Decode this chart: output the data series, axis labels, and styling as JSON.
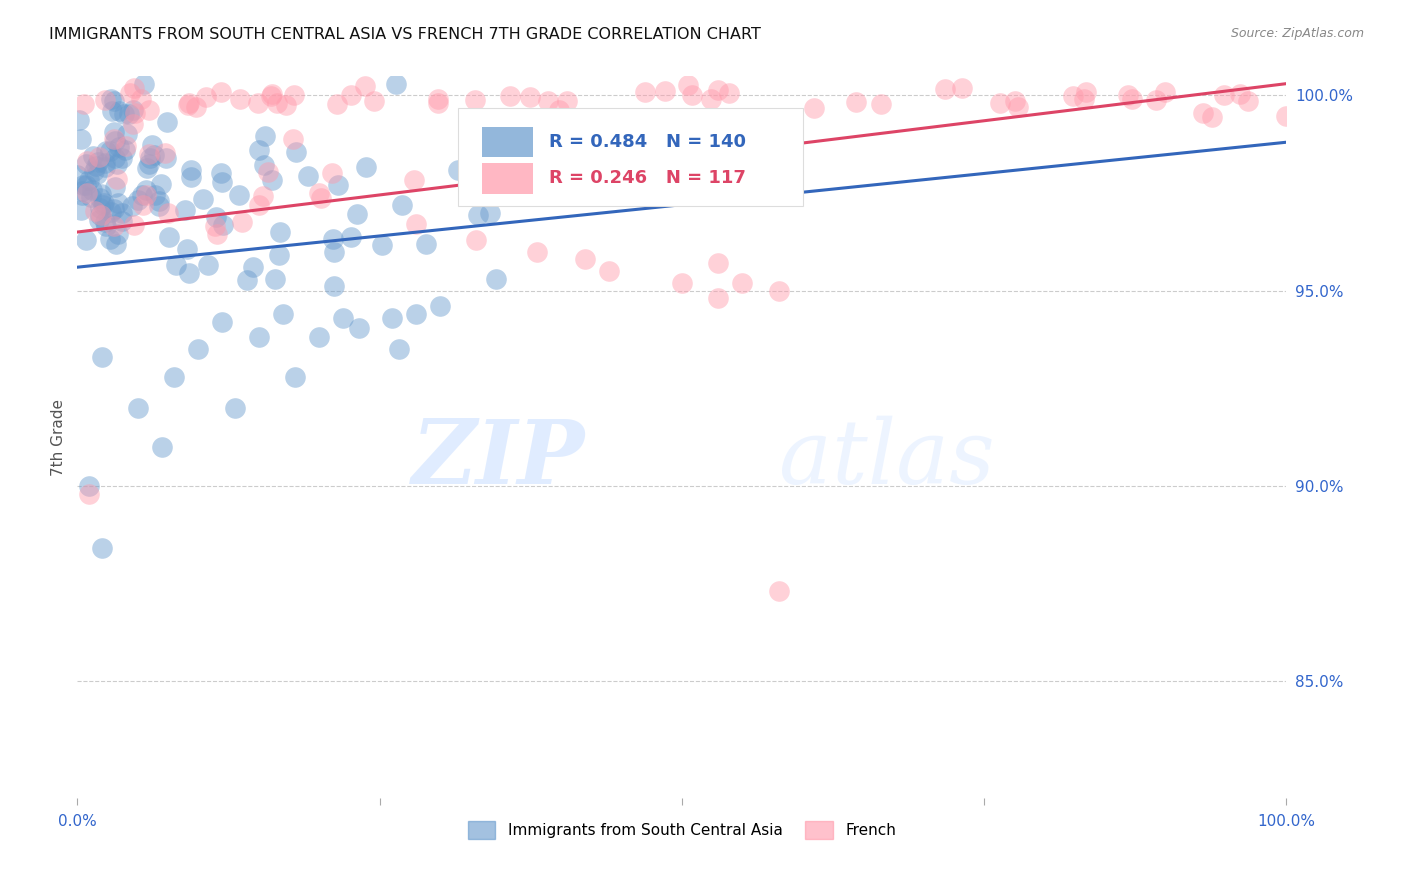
{
  "title": "IMMIGRANTS FROM SOUTH CENTRAL ASIA VS FRENCH 7TH GRADE CORRELATION CHART",
  "source": "Source: ZipAtlas.com",
  "ylabel": "7th Grade",
  "legend_blue_label": "Immigrants from South Central Asia",
  "legend_pink_label": "French",
  "R_blue": 0.484,
  "N_blue": 140,
  "R_pink": 0.246,
  "N_pink": 117,
  "blue_color": "#6699CC",
  "pink_color": "#FF99AA",
  "blue_edge": "#4477BB",
  "pink_edge": "#EE6688",
  "trendline_blue": "#3366BB",
  "trendline_pink": "#DD4466",
  "background": "#ffffff",
  "watermark_zip": "ZIP",
  "watermark_atlas": "atlas",
  "xlim": [
    0.0,
    1.0
  ],
  "ylim": [
    0.82,
    1.005
  ],
  "y_ticks": [
    0.85,
    0.9,
    0.95,
    1.0
  ],
  "y_tick_labels": [
    "85.0%",
    "90.0%",
    "95.0%",
    "100.0%"
  ],
  "grid_color": "#cccccc",
  "blue_line_x0": 0.0,
  "blue_line_y0": 0.956,
  "blue_line_x1": 1.0,
  "blue_line_y1": 0.988,
  "pink_line_x0": 0.0,
  "pink_line_y0": 0.965,
  "pink_line_x1": 1.0,
  "pink_line_y1": 1.003
}
